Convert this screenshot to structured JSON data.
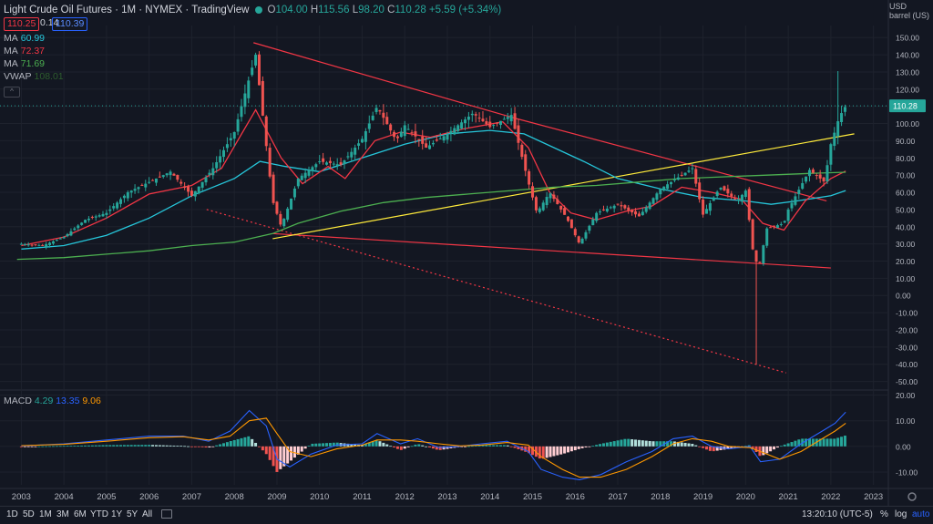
{
  "header": {
    "symbol": "Light Crude Oil Futures · 1M · NYMEX · TradingView",
    "open_label": "O",
    "open": "104.00",
    "high_label": "H",
    "high": "115.56",
    "low_label": "L",
    "low": "98.20",
    "close_label": "C",
    "close": "110.28",
    "change": "+5.59 (+5.34%)"
  },
  "quote": {
    "bid": "110.25",
    "spread": "0.14",
    "ask": "110.39"
  },
  "indicators": [
    {
      "name": "MA",
      "value": "60.99",
      "color": "#26c6da"
    },
    {
      "name": "MA",
      "value": "72.37",
      "color": "#f23645"
    },
    {
      "name": "MA",
      "value": "71.69",
      "color": "#4caf50"
    },
    {
      "name": "VWAP",
      "value": "108.01",
      "color": "#2e5d2e"
    }
  ],
  "price_axis": {
    "currency": "USD",
    "unit": "barrel (US)",
    "last_price": "110.28"
  },
  "macd": {
    "name": "MACD",
    "hist": "4.29",
    "macd": "13.35",
    "signal": "9.06",
    "hist_color": "#26a69a",
    "macd_color": "#2962ff",
    "signal_color": "#ff9800"
  },
  "bottom": {
    "timeframes": [
      "1D",
      "5D",
      "1M",
      "3M",
      "6M",
      "YTD",
      "1Y",
      "5Y",
      "All"
    ],
    "clock": "13:20:10 (UTC-5)",
    "pct": "%",
    "log": "log",
    "auto": "auto"
  },
  "chart_data": {
    "type": "candlestick",
    "title": "Light Crude Oil Futures",
    "interval": "1M",
    "exchange": "NYMEX",
    "x_ticks": [
      "2003",
      "2004",
      "2005",
      "2006",
      "2007",
      "2008",
      "2009",
      "2010",
      "2011",
      "2012",
      "2013",
      "2014",
      "2015",
      "2016",
      "2017",
      "2018",
      "2019",
      "2020",
      "2021",
      "2022",
      "2023"
    ],
    "y_ticks": [
      -50,
      -40,
      -30,
      -20,
      -10,
      0,
      10,
      20,
      30,
      40,
      50,
      60,
      70,
      80,
      90,
      100,
      110,
      120,
      130,
      140,
      150
    ],
    "ylim": [
      -55,
      157
    ],
    "macd_ticks": [
      -10,
      0,
      10,
      20
    ],
    "macd_ylim": [
      -15,
      22
    ],
    "close_series": [
      {
        "x": 2003.0,
        "y": 30
      },
      {
        "x": 2003.5,
        "y": 29
      },
      {
        "x": 2004.0,
        "y": 34
      },
      {
        "x": 2004.5,
        "y": 44
      },
      {
        "x": 2005.0,
        "y": 48
      },
      {
        "x": 2005.5,
        "y": 60
      },
      {
        "x": 2006.0,
        "y": 66
      },
      {
        "x": 2006.5,
        "y": 72
      },
      {
        "x": 2007.0,
        "y": 58
      },
      {
        "x": 2007.5,
        "y": 74
      },
      {
        "x": 2008.0,
        "y": 95
      },
      {
        "x": 2008.5,
        "y": 140
      },
      {
        "x": 2008.9,
        "y": 55
      },
      {
        "x": 2009.1,
        "y": 40
      },
      {
        "x": 2009.5,
        "y": 68
      },
      {
        "x": 2010.0,
        "y": 78
      },
      {
        "x": 2010.5,
        "y": 76
      },
      {
        "x": 2011.0,
        "y": 91
      },
      {
        "x": 2011.35,
        "y": 110
      },
      {
        "x": 2011.8,
        "y": 90
      },
      {
        "x": 2012.0,
        "y": 99
      },
      {
        "x": 2012.5,
        "y": 86
      },
      {
        "x": 2013.0,
        "y": 94
      },
      {
        "x": 2013.6,
        "y": 106
      },
      {
        "x": 2014.0,
        "y": 98
      },
      {
        "x": 2014.5,
        "y": 105
      },
      {
        "x": 2014.9,
        "y": 66
      },
      {
        "x": 2015.1,
        "y": 48
      },
      {
        "x": 2015.4,
        "y": 60
      },
      {
        "x": 2015.8,
        "y": 45
      },
      {
        "x": 2016.1,
        "y": 30
      },
      {
        "x": 2016.5,
        "y": 48
      },
      {
        "x": 2017.0,
        "y": 53
      },
      {
        "x": 2017.5,
        "y": 46
      },
      {
        "x": 2018.0,
        "y": 62
      },
      {
        "x": 2018.75,
        "y": 74
      },
      {
        "x": 2019.0,
        "y": 47
      },
      {
        "x": 2019.4,
        "y": 63
      },
      {
        "x": 2019.8,
        "y": 55
      },
      {
        "x": 2020.0,
        "y": 61
      },
      {
        "x": 2020.2,
        "y": 20
      },
      {
        "x": 2020.33,
        "y": 19
      },
      {
        "x": 2020.5,
        "y": 39
      },
      {
        "x": 2020.9,
        "y": 42
      },
      {
        "x": 2021.0,
        "y": 50
      },
      {
        "x": 2021.5,
        "y": 73
      },
      {
        "x": 2021.85,
        "y": 66
      },
      {
        "x": 2022.0,
        "y": 88
      },
      {
        "x": 2022.2,
        "y": 104
      },
      {
        "x": 2022.35,
        "y": 110.28
      }
    ],
    "series": [
      {
        "name": "MA",
        "value": "60.99",
        "color": "#26c6da",
        "points": [
          [
            2003,
            27
          ],
          [
            2004,
            29
          ],
          [
            2005,
            35
          ],
          [
            2006,
            45
          ],
          [
            2007,
            58
          ],
          [
            2008,
            68
          ],
          [
            2008.6,
            78
          ],
          [
            2009.2,
            75
          ],
          [
            2010,
            72
          ],
          [
            2011,
            80
          ],
          [
            2012,
            88
          ],
          [
            2013,
            94
          ],
          [
            2014,
            96
          ],
          [
            2014.8,
            94
          ],
          [
            2015.5,
            86
          ],
          [
            2016.2,
            78
          ],
          [
            2017,
            68
          ],
          [
            2018,
            62
          ],
          [
            2019,
            57
          ],
          [
            2020,
            55
          ],
          [
            2020.6,
            53
          ],
          [
            2021.2,
            55
          ],
          [
            2022,
            58
          ],
          [
            2022.35,
            61
          ]
        ]
      },
      {
        "name": "MA",
        "value": "72.37",
        "color": "#f23645",
        "points": [
          [
            2003,
            29
          ],
          [
            2004,
            34
          ],
          [
            2005,
            45
          ],
          [
            2006,
            59
          ],
          [
            2007,
            64
          ],
          [
            2007.7,
            74
          ],
          [
            2008.5,
            108
          ],
          [
            2009.1,
            80
          ],
          [
            2009.6,
            65
          ],
          [
            2010.2,
            75
          ],
          [
            2010.6,
            68
          ],
          [
            2011.3,
            90
          ],
          [
            2011.9,
            95
          ],
          [
            2012.6,
            92
          ],
          [
            2013.4,
            97
          ],
          [
            2014.3,
            101
          ],
          [
            2014.9,
            86
          ],
          [
            2015.4,
            60
          ],
          [
            2015.9,
            48
          ],
          [
            2016.5,
            44
          ],
          [
            2017.2,
            49
          ],
          [
            2017.8,
            52
          ],
          [
            2018.5,
            63
          ],
          [
            2019.2,
            60
          ],
          [
            2019.9,
            56
          ],
          [
            2020.4,
            42
          ],
          [
            2020.9,
            38
          ],
          [
            2021.4,
            55
          ],
          [
            2022.0,
            68
          ],
          [
            2022.35,
            72.37
          ]
        ]
      },
      {
        "name": "MA",
        "value": "71.69",
        "color": "#4caf50",
        "points": [
          [
            2002.9,
            21
          ],
          [
            2004,
            22
          ],
          [
            2005,
            24
          ],
          [
            2006,
            26
          ],
          [
            2007,
            29
          ],
          [
            2008,
            31
          ],
          [
            2008.9,
            36
          ],
          [
            2009.5,
            42
          ],
          [
            2010.5,
            49
          ],
          [
            2011.5,
            54
          ],
          [
            2012.5,
            57
          ],
          [
            2013.5,
            59
          ],
          [
            2014.5,
            61
          ],
          [
            2015.5,
            63
          ],
          [
            2016.5,
            64
          ],
          [
            2017.5,
            66
          ],
          [
            2018.5,
            68
          ],
          [
            2019.5,
            69
          ],
          [
            2020.5,
            70
          ],
          [
            2021.5,
            71
          ],
          [
            2022.35,
            71.69
          ]
        ]
      }
    ],
    "macd_series": {
      "macd": [
        [
          2003,
          0.2
        ],
        [
          2004,
          1
        ],
        [
          2005,
          2.5
        ],
        [
          2006,
          4
        ],
        [
          2006.8,
          4
        ],
        [
          2007.4,
          2
        ],
        [
          2007.9,
          6
        ],
        [
          2008.35,
          14
        ],
        [
          2008.75,
          8
        ],
        [
          2009.0,
          -5
        ],
        [
          2009.3,
          -8
        ],
        [
          2009.8,
          -3
        ],
        [
          2010.4,
          0.5
        ],
        [
          2011.0,
          1
        ],
        [
          2011.35,
          5
        ],
        [
          2011.9,
          1
        ],
        [
          2012.3,
          3
        ],
        [
          2012.8,
          -0.5
        ],
        [
          2013.3,
          0
        ],
        [
          2013.8,
          1
        ],
        [
          2014.4,
          2
        ],
        [
          2014.9,
          -2
        ],
        [
          2015.2,
          -9
        ],
        [
          2015.7,
          -12
        ],
        [
          2016.1,
          -13
        ],
        [
          2016.6,
          -11
        ],
        [
          2017.2,
          -6
        ],
        [
          2017.8,
          -2
        ],
        [
          2018.3,
          3
        ],
        [
          2018.75,
          4
        ],
        [
          2019.2,
          0
        ],
        [
          2019.6,
          -1
        ],
        [
          2020.1,
          0
        ],
        [
          2020.35,
          -6
        ],
        [
          2020.8,
          -5
        ],
        [
          2021.3,
          1
        ],
        [
          2021.8,
          6
        ],
        [
          2022.1,
          9
        ],
        [
          2022.35,
          13.35
        ]
      ],
      "signal": [
        [
          2003,
          0.3
        ],
        [
          2004,
          0.8
        ],
        [
          2005,
          2
        ],
        [
          2006,
          3.4
        ],
        [
          2006.8,
          3.8
        ],
        [
          2007.4,
          2.5
        ],
        [
          2007.9,
          4
        ],
        [
          2008.35,
          10
        ],
        [
          2008.75,
          11
        ],
        [
          2009.0,
          5
        ],
        [
          2009.3,
          -2
        ],
        [
          2009.8,
          -4
        ],
        [
          2010.4,
          -1
        ],
        [
          2011.0,
          0.5
        ],
        [
          2011.35,
          2.5
        ],
        [
          2011.9,
          2.5
        ],
        [
          2012.3,
          2
        ],
        [
          2012.8,
          1
        ],
        [
          2013.3,
          0.2
        ],
        [
          2013.8,
          0.5
        ],
        [
          2014.4,
          1.5
        ],
        [
          2014.9,
          0.5
        ],
        [
          2015.2,
          -4
        ],
        [
          2015.7,
          -9
        ],
        [
          2016.1,
          -12
        ],
        [
          2016.6,
          -12
        ],
        [
          2017.2,
          -9
        ],
        [
          2017.8,
          -4
        ],
        [
          2018.3,
          1
        ],
        [
          2018.75,
          3
        ],
        [
          2019.2,
          2
        ],
        [
          2019.6,
          0
        ],
        [
          2020.1,
          -0.5
        ],
        [
          2020.35,
          -2
        ],
        [
          2020.8,
          -5
        ],
        [
          2021.3,
          -2
        ],
        [
          2021.8,
          3
        ],
        [
          2022.1,
          6
        ],
        [
          2022.35,
          9.06
        ]
      ]
    },
    "trendlines": [
      {
        "color": "#f23645",
        "style": "solid",
        "from": [
          2008.45,
          147
        ],
        "to": [
          2014.6,
          103
        ]
      },
      {
        "color": "#f23645",
        "style": "solid",
        "from": [
          2014.6,
          103
        ],
        "to": [
          2021.9,
          55
        ]
      },
      {
        "color": "#f23645",
        "style": "solid",
        "from": [
          2008.9,
          36
        ],
        "to": [
          2022.0,
          16
        ]
      },
      {
        "color": "#f23645",
        "style": "dotted",
        "from": [
          2007.35,
          50
        ],
        "to": [
          2020.95,
          -45
        ]
      },
      {
        "color": "#ffeb3b",
        "style": "solid",
        "from": [
          2008.9,
          33
        ],
        "to": [
          2022.55,
          94
        ]
      }
    ]
  }
}
